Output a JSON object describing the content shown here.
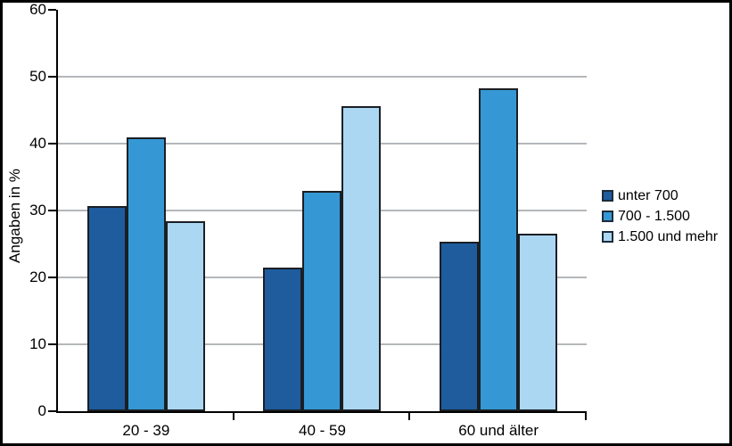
{
  "chart_data": {
    "type": "bar",
    "title": "",
    "ylabel": "Angaben in %",
    "xlabel": "",
    "categories": [
      "20 - 39",
      "40 - 59",
      "60 und älter"
    ],
    "series": [
      {
        "name": "unter 700",
        "color": "#1e5c9e",
        "values": [
          30.7,
          21.5,
          25.3
        ]
      },
      {
        "name": "700 - 1.500",
        "color": "#3598d4",
        "values": [
          40.9,
          32.9,
          48.2
        ]
      },
      {
        "name": "1.500 und mehr",
        "color": "#abd7f2",
        "values": [
          28.4,
          45.6,
          26.5
        ]
      }
    ],
    "ylim": [
      0,
      60
    ],
    "yticks": [
      0,
      10,
      20,
      30,
      40,
      50,
      60
    ],
    "grid": true,
    "legend_position": "right",
    "styles": {
      "bar_border": "#1b1f24",
      "legend_swatch_border": "#1c2b3a",
      "gridline": "#b4b7ba",
      "axis": "#000000",
      "text": "#000000",
      "background": "#ffffff",
      "frame_border": "#000000"
    }
  }
}
